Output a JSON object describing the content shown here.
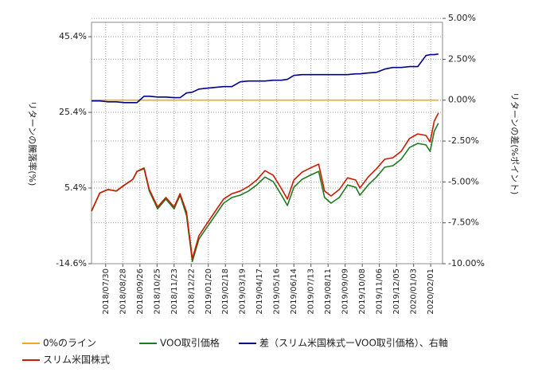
{
  "chart_data": {
    "type": "line",
    "ylabel": "リターンの騰落率(%)",
    "y2label": "リターンの差(%ポイント)",
    "xlim": [
      "2018/07/06",
      "2020/02/21"
    ],
    "xticks": [
      "2018/07/30",
      "2018/08/28",
      "2018/09/26",
      "2018/10/25",
      "2018/11/23",
      "2018/12/22",
      "2019/01/20",
      "2019/02/18",
      "2019/03/19",
      "2019/04/17",
      "2019/05/16",
      "2019/06/14",
      "2019/07/13",
      "2019/08/11",
      "2019/09/09",
      "2019/10/08",
      "2019/11/06",
      "2019/12/05",
      "2020/01/03",
      "2020/02/01"
    ],
    "ylim": [
      -14.6,
      49.2
    ],
    "yticks": [
      {
        "value": 45.4,
        "label": "45.4%"
      },
      {
        "value": 25.4,
        "label": "25.4%"
      },
      {
        "value": 5.4,
        "label": "5.4%"
      },
      {
        "value": -14.6,
        "label": "-14.6%"
      }
    ],
    "y2lim": [
      -10,
      4.76
    ],
    "y2ticks": [
      {
        "value": 5,
        "label": "5.00%"
      },
      {
        "value": 2.5,
        "label": "2.50%"
      },
      {
        "value": 0,
        "label": "0.00%"
      },
      {
        "value": -2.5,
        "label": "-2.50%"
      },
      {
        "value": -5,
        "label": "-5.00%"
      },
      {
        "value": -7.5,
        "label": "-7.50%"
      },
      {
        "value": -10,
        "label": "-10.00%"
      }
    ],
    "grid": true,
    "legend": "bottom",
    "x": [
      "2018/07/06",
      "2018/07/20",
      "2018/08/03",
      "2018/08/17",
      "2018/08/31",
      "2018/09/14",
      "2018/09/21",
      "2018/10/03",
      "2018/10/12",
      "2018/10/26",
      "2018/11/09",
      "2018/11/23",
      "2018/12/03",
      "2018/12/14",
      "2018/12/24",
      "2019/01/04",
      "2019/01/18",
      "2019/02/01",
      "2019/02/15",
      "2019/03/01",
      "2019/03/15",
      "2019/03/29",
      "2019/04/12",
      "2019/04/26",
      "2019/05/10",
      "2019/05/24",
      "2019/06/03",
      "2019/06/14",
      "2019/06/28",
      "2019/07/12",
      "2019/07/26",
      "2019/08/05",
      "2019/08/16",
      "2019/08/30",
      "2019/09/13",
      "2019/09/27",
      "2019/10/04",
      "2019/10/18",
      "2019/11/01",
      "2019/11/15",
      "2019/11/29",
      "2019/12/13",
      "2019/12/27",
      "2020/01/10",
      "2020/01/24",
      "2020/01/31",
      "2020/02/07",
      "2020/02/14"
    ],
    "series": [
      {
        "name": "0%のライン",
        "color": "#f5a623",
        "axis": "y2",
        "x": [
          "2018/07/06",
          "2020/02/14"
        ],
        "values": [
          0,
          0
        ]
      },
      {
        "name": "VOO取引価格",
        "color": "#1f7a1f",
        "axis": "y",
        "values": [
          -0.7,
          4.1,
          5.0,
          4.6,
          6.2,
          7.7,
          9.8,
          10.5,
          4.6,
          -0.1,
          2.5,
          -0.1,
          3.5,
          -1.8,
          -14.0,
          -8.1,
          -4.9,
          -1.8,
          1.4,
          2.9,
          3.5,
          4.6,
          6.2,
          8.3,
          7.1,
          3.5,
          0.8,
          5.6,
          7.7,
          8.8,
          9.8,
          2.9,
          1.4,
          2.9,
          6.2,
          5.6,
          3.5,
          6.2,
          8.3,
          10.9,
          11.3,
          13.0,
          16.1,
          17.2,
          16.8,
          15.1,
          20.4,
          22.5
        ]
      },
      {
        "name": "差（スリム米国株式ーVOO取引価格）、右軸",
        "color": "#00008b",
        "axis": "y2",
        "values": [
          -0.05,
          -0.05,
          -0.1,
          -0.1,
          -0.15,
          -0.15,
          -0.15,
          0.24,
          0.24,
          0.19,
          0.19,
          0.15,
          0.15,
          0.44,
          0.49,
          0.68,
          0.73,
          0.78,
          0.83,
          0.83,
          1.12,
          1.17,
          1.17,
          1.17,
          1.22,
          1.22,
          1.27,
          1.51,
          1.56,
          1.56,
          1.56,
          1.56,
          1.56,
          1.56,
          1.56,
          1.61,
          1.61,
          1.66,
          1.7,
          1.9,
          2.0,
          2.0,
          2.05,
          2.05,
          2.73,
          2.78,
          2.78,
          2.82
        ]
      },
      {
        "name": "スリム米国株式",
        "color": "#cc1a00",
        "axis": "y",
        "values": [
          -0.7,
          4.1,
          5.0,
          4.6,
          6.2,
          7.7,
          9.8,
          10.7,
          5.0,
          0.4,
          2.9,
          0.4,
          3.9,
          -0.9,
          -13.3,
          -7.2,
          -3.9,
          -0.7,
          2.5,
          3.9,
          4.6,
          5.8,
          7.5,
          10.0,
          8.8,
          5.2,
          2.5,
          7.5,
          9.6,
          10.7,
          11.7,
          4.6,
          3.3,
          5.0,
          8.1,
          7.5,
          5.4,
          8.3,
          10.5,
          13.0,
          13.4,
          15.1,
          18.5,
          19.7,
          19.3,
          17.6,
          23.1,
          25.2
        ]
      }
    ]
  }
}
